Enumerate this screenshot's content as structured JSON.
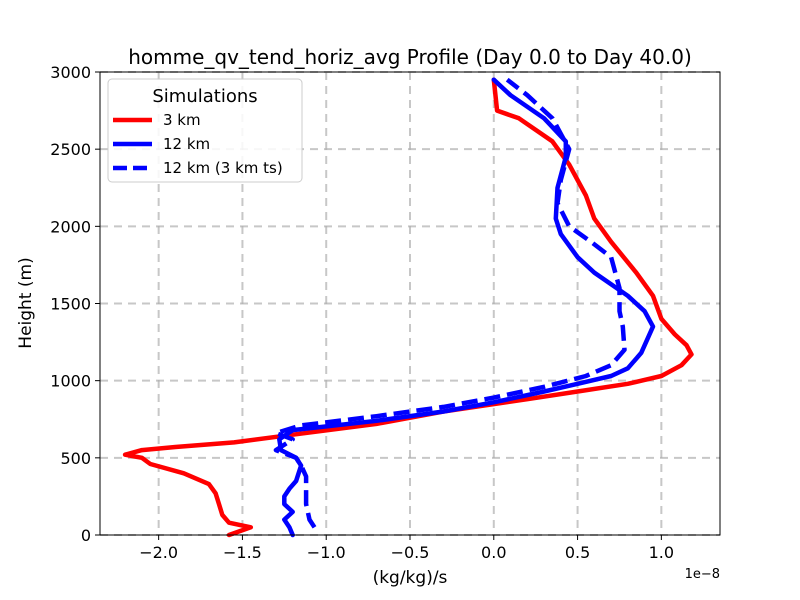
{
  "chart_data": {
    "type": "line",
    "title": "homme_qv_tend_horiz_avg Profile (Day 0.0 to Day 40.0)",
    "xlabel": "(kg/kg)/s",
    "ylabel": "Height (m)",
    "x_offset_label": "1e−8",
    "xlim": [
      -2.35,
      1.35
    ],
    "ylim": [
      0,
      3000
    ],
    "x_ticks": [
      -2.0,
      -1.5,
      -1.0,
      -0.5,
      0.0,
      0.5,
      1.0
    ],
    "x_tick_labels": [
      "−2.0",
      "−1.5",
      "−1.0",
      "−0.5",
      "0.0",
      "0.5",
      "1.0"
    ],
    "y_ticks": [
      0,
      500,
      1000,
      1500,
      2000,
      2500,
      3000
    ],
    "y_tick_labels": [
      "0",
      "500",
      "1000",
      "1500",
      "2000",
      "2500",
      "3000"
    ],
    "grid": true,
    "legend": {
      "title": "Simulations",
      "placement": "top-left"
    },
    "series": [
      {
        "name": "3 km",
        "color": "#ff0000",
        "style": "solid",
        "points": [
          [
            -1.58,
            0
          ],
          [
            -1.45,
            50
          ],
          [
            -1.58,
            80
          ],
          [
            -1.62,
            130
          ],
          [
            -1.64,
            200
          ],
          [
            -1.66,
            270
          ],
          [
            -1.7,
            330
          ],
          [
            -1.85,
            400
          ],
          [
            -2.05,
            460
          ],
          [
            -2.1,
            500
          ],
          [
            -2.2,
            520
          ],
          [
            -2.1,
            550
          ],
          [
            -1.9,
            570
          ],
          [
            -1.55,
            600
          ],
          [
            -1.2,
            650
          ],
          [
            -0.7,
            720
          ],
          [
            -0.3,
            800
          ],
          [
            0.2,
            880
          ],
          [
            0.5,
            930
          ],
          [
            0.8,
            980
          ],
          [
            1.0,
            1030
          ],
          [
            1.12,
            1100
          ],
          [
            1.18,
            1170
          ],
          [
            1.15,
            1230
          ],
          [
            1.08,
            1300
          ],
          [
            1.0,
            1400
          ],
          [
            0.95,
            1550
          ],
          [
            0.85,
            1700
          ],
          [
            0.7,
            1900
          ],
          [
            0.6,
            2050
          ],
          [
            0.55,
            2200
          ],
          [
            0.45,
            2400
          ],
          [
            0.35,
            2550
          ],
          [
            0.15,
            2700
          ],
          [
            0.02,
            2750
          ],
          [
            0.0,
            2950
          ]
        ]
      },
      {
        "name": "12 km",
        "color": "#0000ff",
        "style": "solid",
        "points": [
          [
            -1.2,
            0
          ],
          [
            -1.22,
            50
          ],
          [
            -1.25,
            100
          ],
          [
            -1.2,
            150
          ],
          [
            -1.25,
            200
          ],
          [
            -1.25,
            250
          ],
          [
            -1.22,
            300
          ],
          [
            -1.18,
            350
          ],
          [
            -1.15,
            450
          ],
          [
            -1.18,
            500
          ],
          [
            -1.27,
            550
          ],
          [
            -1.28,
            620
          ],
          [
            -1.2,
            680
          ],
          [
            -0.7,
            740
          ],
          [
            -0.3,
            800
          ],
          [
            0.0,
            860
          ],
          [
            0.3,
            930
          ],
          [
            0.5,
            980
          ],
          [
            0.7,
            1030
          ],
          [
            0.8,
            1080
          ],
          [
            0.88,
            1180
          ],
          [
            0.95,
            1350
          ],
          [
            0.9,
            1450
          ],
          [
            0.8,
            1550
          ],
          [
            0.6,
            1700
          ],
          [
            0.5,
            1800
          ],
          [
            0.4,
            1950
          ],
          [
            0.37,
            2050
          ],
          [
            0.38,
            2250
          ],
          [
            0.43,
            2450
          ],
          [
            0.43,
            2550
          ],
          [
            0.3,
            2700
          ],
          [
            0.1,
            2850
          ],
          [
            0.0,
            2950
          ]
        ]
      },
      {
        "name": "12 km (3 km ts)",
        "color": "#0000ff",
        "style": "dashed",
        "points": [
          [
            -1.07,
            50
          ],
          [
            -1.1,
            100
          ],
          [
            -1.12,
            200
          ],
          [
            -1.12,
            300
          ],
          [
            -1.12,
            380
          ],
          [
            -1.15,
            450
          ],
          [
            -1.18,
            500
          ],
          [
            -1.3,
            550
          ],
          [
            -1.2,
            620
          ],
          [
            -1.3,
            660
          ],
          [
            -1.15,
            710
          ],
          [
            -0.7,
            770
          ],
          [
            -0.3,
            830
          ],
          [
            0.0,
            890
          ],
          [
            0.3,
            960
          ],
          [
            0.55,
            1030
          ],
          [
            0.7,
            1100
          ],
          [
            0.78,
            1200
          ],
          [
            0.77,
            1350
          ],
          [
            0.75,
            1450
          ],
          [
            0.75,
            1600
          ],
          [
            0.7,
            1800
          ],
          [
            0.58,
            1900
          ],
          [
            0.45,
            2000
          ],
          [
            0.38,
            2150
          ],
          [
            0.4,
            2300
          ],
          [
            0.45,
            2500
          ],
          [
            0.35,
            2700
          ],
          [
            0.2,
            2850
          ],
          [
            0.08,
            2950
          ]
        ]
      }
    ]
  }
}
